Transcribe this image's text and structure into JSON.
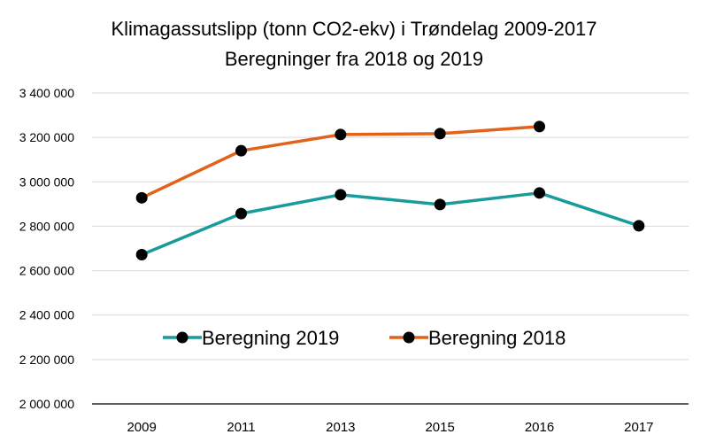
{
  "chart_data": {
    "type": "line",
    "title": "Klimagassutslipp (tonn CO2-ekv) i Trøndelag 2009-2017",
    "subtitle": "Beregninger fra 2018 og 2019",
    "categories": [
      "2009",
      "2011",
      "2013",
      "2015",
      "2016",
      "2017"
    ],
    "y_ticks": [
      "2 000 000",
      "2 200 000",
      "2 400 000",
      "2 600 000",
      "2 800 000",
      "3 000 000",
      "3 200 000",
      "3 400 000"
    ],
    "ylim": [
      2000000,
      3400000
    ],
    "grid": true,
    "legend_position": "inside-center",
    "series": [
      {
        "name": "Beregning 2019",
        "color": "#1a9b9b",
        "marker_color": "#000000",
        "values": [
          2672000,
          2857000,
          2942000,
          2898000,
          2950000,
          2802000
        ]
      },
      {
        "name": "Beregning 2018",
        "color": "#e2621b",
        "marker_color": "#000000",
        "values": [
          2928000,
          3140000,
          3213000,
          3217000,
          3249000,
          null
        ]
      }
    ]
  }
}
